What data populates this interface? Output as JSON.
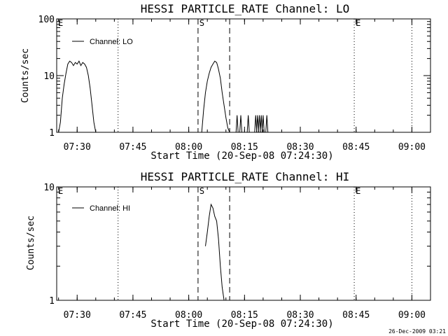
{
  "footer_stamp": "26-Dec-2009 03:21",
  "chart_data": [
    {
      "type": "line",
      "title": "HESSI PARTICLE_RATE Channel: LO",
      "xlabel": "Start Time (20-Sep-08 07:24:30)",
      "ylabel": "Counts/sec",
      "yscale": "log",
      "ylim": [
        1,
        100
      ],
      "y_ticks": [
        "1",
        "10",
        "100"
      ],
      "x_ticks": [
        "07:30",
        "07:45",
        "08:00",
        "08:15",
        "08:30",
        "08:45",
        "09:00"
      ],
      "legend": "top-left",
      "series": [
        {
          "name": "Channel: LO",
          "x": [
            "07:25:00",
            "07:25:30",
            "07:26:00",
            "07:26:30",
            "07:27:00",
            "07:27:30",
            "07:28:00",
            "07:28:30",
            "07:29:00",
            "07:29:30",
            "07:30:00",
            "07:30:30",
            "07:31:00",
            "07:31:30",
            "07:32:00",
            "07:32:30",
            "07:33:00",
            "07:33:30",
            "07:34:00",
            "07:34:30",
            "07:35:00",
            "07:35:30",
            "08:03:30",
            "08:04:00",
            "08:04:30",
            "08:05:00",
            "08:05:30",
            "08:06:00",
            "08:06:30",
            "08:07:00",
            "08:07:30",
            "08:07:45",
            "08:08:00",
            "08:08:30",
            "08:09:00",
            "08:09:30",
            "08:10:00",
            "08:10:30",
            "08:11:00"
          ],
          "y": [
            1,
            1.5,
            4,
            7,
            11,
            16,
            18,
            17,
            15,
            17,
            16,
            18,
            15,
            17,
            16,
            14,
            10,
            6,
            3,
            1.5,
            1,
            1,
            1,
            2.5,
            5,
            8,
            11,
            14,
            16,
            18,
            17,
            15,
            13,
            9,
            5,
            3,
            1.8,
            1.2,
            1
          ]
        }
      ],
      "spikes": [
        "08:13:00",
        "08:14:00",
        "08:16:00",
        "08:18:00",
        "08:18:30",
        "08:19:00",
        "08:19:30",
        "08:20:00",
        "08:21:00"
      ],
      "spike_peak": 2,
      "dotted_lines": [
        "07:41:00",
        "08:44:30",
        "09:00:00"
      ],
      "dashed_lines": [
        "08:02:30",
        "08:11:00"
      ],
      "flags": [
        {
          "time": "07:24:30",
          "label": "E"
        },
        {
          "time": "08:02:30",
          "label": "S"
        },
        {
          "time": "08:44:30",
          "label": "E"
        }
      ]
    },
    {
      "type": "line",
      "title": "HESSI PARTICLE_RATE Channel: HI",
      "xlabel": "Start Time (20-Sep-08 07:24:30)",
      "ylabel": "Counts/sec",
      "yscale": "log",
      "ylim": [
        1,
        10
      ],
      "y_ticks": [
        "1",
        "10"
      ],
      "x_ticks": [
        "07:30",
        "07:45",
        "08:00",
        "08:15",
        "08:30",
        "08:45",
        "09:00"
      ],
      "legend": "top-left",
      "series": [
        {
          "name": "Channel: HI",
          "x": [
            "08:04:30",
            "08:05:00",
            "08:05:30",
            "08:06:00",
            "08:06:30",
            "08:07:00",
            "08:07:30",
            "08:08:00",
            "08:08:30",
            "08:09:00",
            "08:09:30"
          ],
          "y": [
            3,
            4,
            5.5,
            7,
            6.5,
            5.5,
            5,
            3.5,
            2,
            1.3,
            1
          ]
        }
      ],
      "spikes": [],
      "spike_peak": 1,
      "dotted_lines": [
        "07:41:00",
        "08:44:30",
        "09:00:00"
      ],
      "dashed_lines": [
        "08:02:30",
        "08:11:00"
      ],
      "flags": [
        {
          "time": "07:24:30",
          "label": "E"
        },
        {
          "time": "08:02:30",
          "label": "S"
        },
        {
          "time": "08:44:30",
          "label": "E"
        }
      ]
    }
  ]
}
